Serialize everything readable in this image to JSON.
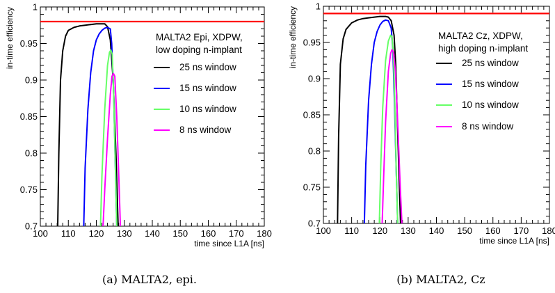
{
  "chart_data": [
    {
      "type": "line",
      "caption": "(a) MALTA2, epi.",
      "xlabel": "time since L1A [ns]",
      "ylabel": "in-time efficiency",
      "xlim": [
        100,
        180
      ],
      "ylim": [
        0.7,
        1.0
      ],
      "xticks": [
        100,
        110,
        120,
        130,
        140,
        150,
        160,
        170,
        180
      ],
      "yticks": [
        0.7,
        0.75,
        0.8,
        0.85,
        0.9,
        0.95,
        1
      ],
      "legend_title": [
        "MALTA2 Epi, XDPW,",
        "low doping n-implant"
      ],
      "legend_placement": "right",
      "reference_line": {
        "y": 0.98,
        "color": "#ff0000"
      },
      "series": [
        {
          "name": "25 ns window",
          "color": "#000000",
          "x": [
            106.2,
            106.6,
            107.2,
            108,
            109,
            110,
            112,
            114,
            116,
            118,
            120,
            121,
            122,
            123,
            124,
            125,
            126,
            127,
            127.8
          ],
          "y": [
            0.7,
            0.8,
            0.9,
            0.94,
            0.96,
            0.968,
            0.972,
            0.974,
            0.975,
            0.976,
            0.977,
            0.977,
            0.977,
            0.977,
            0.973,
            0.955,
            0.9,
            0.8,
            0.7
          ]
        },
        {
          "name": "15 ns window",
          "color": "#0000ff",
          "x": [
            115.5,
            116,
            117,
            118,
            119,
            120,
            121,
            122,
            123,
            124,
            125,
            125.5,
            126.2,
            126.8,
            127.3
          ],
          "y": [
            0.7,
            0.78,
            0.86,
            0.91,
            0.94,
            0.955,
            0.963,
            0.968,
            0.971,
            0.972,
            0.97,
            0.95,
            0.88,
            0.78,
            0.7
          ]
        },
        {
          "name": "10 ns window",
          "color": "#66ff66",
          "x": [
            121.5,
            122,
            123,
            124,
            124.7,
            125.2,
            125.7,
            126.2,
            126.8,
            127.3
          ],
          "y": [
            0.7,
            0.77,
            0.86,
            0.92,
            0.938,
            0.941,
            0.935,
            0.88,
            0.78,
            0.7
          ]
        },
        {
          "name": "8 ns window",
          "color": "#ff00ff",
          "x": [
            122.4,
            123,
            124,
            125,
            125.6,
            126.1,
            126.6,
            127.3,
            128.1,
            128.6
          ],
          "y": [
            0.7,
            0.75,
            0.82,
            0.88,
            0.905,
            0.909,
            0.905,
            0.85,
            0.76,
            0.7
          ]
        }
      ]
    },
    {
      "type": "line",
      "caption": "(b) MALTA2, Cz",
      "xlabel": "time since L1A [ns]",
      "ylabel": "in-time efficiency",
      "xlim": [
        100,
        180
      ],
      "ylim": [
        0.7,
        1.0
      ],
      "xticks": [
        100,
        110,
        120,
        130,
        140,
        150,
        160,
        170,
        180
      ],
      "yticks": [
        0.7,
        0.75,
        0.8,
        0.85,
        0.9,
        0.95,
        1
      ],
      "legend_title": [
        "MALTA2 Cz, XDPW,",
        "high doping n-implant"
      ],
      "legend_placement": "right",
      "reference_line": {
        "y": 0.99,
        "color": "#ff0000"
      },
      "series": [
        {
          "name": "25 ns window",
          "color": "#000000",
          "x": [
            105,
            105.4,
            106,
            107,
            108,
            110,
            112,
            114,
            116,
            118,
            120,
            122,
            123,
            124,
            125,
            125.6,
            126.2,
            126.8,
            127.3
          ],
          "y": [
            0.7,
            0.82,
            0.92,
            0.955,
            0.968,
            0.977,
            0.981,
            0.983,
            0.984,
            0.985,
            0.986,
            0.986,
            0.985,
            0.98,
            0.96,
            0.92,
            0.84,
            0.76,
            0.7
          ]
        },
        {
          "name": "15 ns window",
          "color": "#0000ff",
          "x": [
            114.5,
            115,
            116,
            117,
            118,
            119,
            120,
            121,
            122,
            123,
            124,
            124.6,
            125.2,
            125.8,
            126.3
          ],
          "y": [
            0.7,
            0.78,
            0.87,
            0.92,
            0.95,
            0.965,
            0.974,
            0.979,
            0.981,
            0.98,
            0.97,
            0.94,
            0.86,
            0.77,
            0.7
          ]
        },
        {
          "name": "10 ns window",
          "color": "#66ff66",
          "x": [
            119.8,
            120.3,
            121,
            122,
            123,
            123.8,
            124.3,
            124.8,
            125.3,
            125.8,
            126.3
          ],
          "y": [
            0.7,
            0.78,
            0.86,
            0.925,
            0.952,
            0.96,
            0.958,
            0.93,
            0.86,
            0.77,
            0.7
          ]
        },
        {
          "name": "8 ns window",
          "color": "#ff00ff",
          "x": [
            120.8,
            121.3,
            122,
            123,
            123.8,
            124.3,
            124.8,
            125.5,
            126.3,
            127.2,
            127.8
          ],
          "y": [
            0.7,
            0.76,
            0.84,
            0.91,
            0.935,
            0.94,
            0.937,
            0.91,
            0.84,
            0.75,
            0.7
          ]
        }
      ]
    }
  ]
}
